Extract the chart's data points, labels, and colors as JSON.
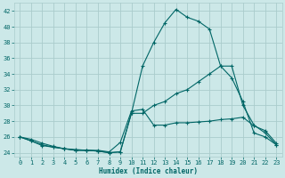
{
  "xlabel": "Humidex (Indice chaleur)",
  "bg_color": "#cce8e8",
  "grid_color": "#aacccc",
  "line_color": "#006666",
  "xlim": [
    -0.5,
    23.5
  ],
  "ylim": [
    23.5,
    43.0
  ],
  "xticks": [
    0,
    1,
    2,
    3,
    4,
    5,
    6,
    7,
    8,
    9,
    10,
    11,
    12,
    13,
    14,
    15,
    16,
    17,
    18,
    19,
    20,
    21,
    22,
    23
  ],
  "yticks": [
    24,
    26,
    28,
    30,
    32,
    34,
    36,
    38,
    40,
    42
  ],
  "line1_x": [
    0,
    1,
    2,
    3,
    4,
    5,
    6,
    7,
    8,
    9,
    10,
    11,
    12,
    13,
    14,
    15,
    16,
    17,
    18,
    19,
    20,
    21,
    22,
    23
  ],
  "line1_y": [
    26.0,
    25.7,
    25.2,
    24.8,
    24.5,
    24.4,
    24.3,
    24.3,
    24.1,
    25.3,
    29.3,
    29.5,
    27.5,
    27.5,
    27.8,
    27.8,
    27.9,
    28.0,
    28.2,
    28.3,
    28.5,
    27.4,
    26.8,
    25.2
  ],
  "line2_x": [
    0,
    1,
    2,
    3,
    4,
    5,
    6,
    7,
    8,
    9,
    10,
    11,
    12,
    13,
    14,
    15,
    16,
    17,
    18,
    19,
    20,
    21,
    22,
    23
  ],
  "line2_y": [
    26.0,
    25.5,
    25.0,
    24.7,
    24.5,
    24.3,
    24.3,
    24.2,
    24.0,
    24.1,
    29.0,
    35.0,
    38.0,
    40.5,
    42.2,
    41.2,
    40.7,
    39.7,
    35.0,
    33.5,
    30.5,
    26.5,
    26.0,
    25.0
  ],
  "line3_x": [
    0,
    1,
    2,
    3,
    4,
    5,
    6,
    7,
    8,
    9,
    10,
    11,
    12,
    13,
    14,
    15,
    16,
    17,
    18,
    19,
    20,
    21,
    22,
    23
  ],
  "line3_y": [
    26.0,
    25.5,
    24.9,
    24.7,
    24.5,
    24.3,
    24.3,
    24.2,
    24.0,
    24.1,
    29.0,
    29.0,
    30.0,
    30.5,
    31.5,
    32.0,
    33.0,
    34.0,
    35.0,
    35.0,
    30.0,
    27.5,
    26.5,
    25.0
  ],
  "xlabel_fontsize": 5.5,
  "tick_fontsize": 5.0
}
